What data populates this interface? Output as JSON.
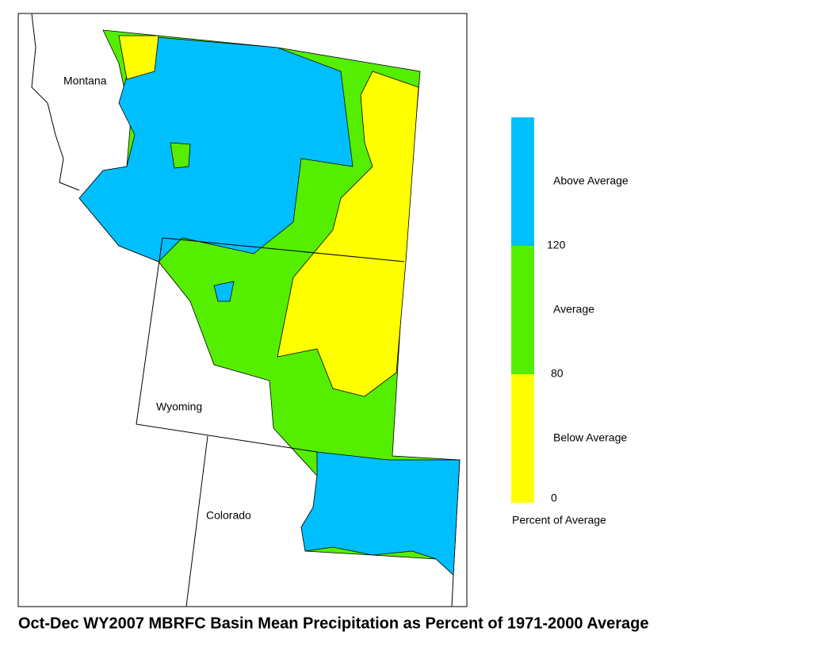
{
  "title": "Oct-Dec WY2007 MBRFC Basin Mean Precipitation as Percent of 1971-2000 Average",
  "map": {
    "labels": [
      "Montana",
      "Wyoming",
      "Colorado"
    ]
  },
  "legend": {
    "title": "Percent of Average",
    "classes": [
      {
        "label": "Above Average",
        "color": "#00bfff"
      },
      {
        "label": "Average",
        "color": "#55ee00"
      },
      {
        "label": "Below Average",
        "color": "#ffff00"
      }
    ],
    "ticks": [
      120,
      80,
      0
    ]
  }
}
